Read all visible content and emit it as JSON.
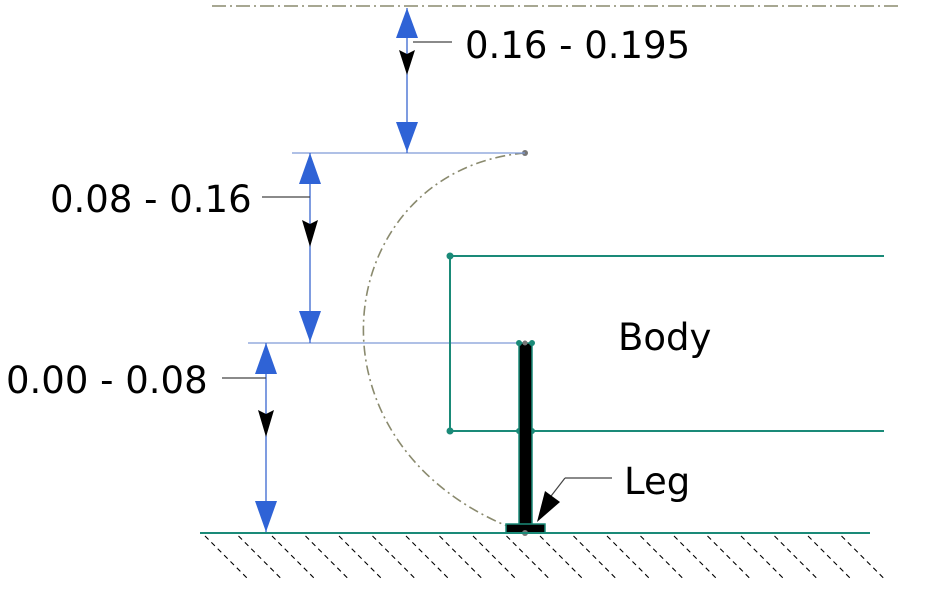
{
  "labels": {
    "range_top": "0.16 - 0.195",
    "range_middle": "0.08 - 0.16",
    "range_bottom": "0.00 - 0.08",
    "body": "Body",
    "leg": "Leg"
  },
  "colors": {
    "dimension_line": "#3a66d0",
    "guide_line": "#7f9bd6",
    "arrow_fill": "#2f63d6",
    "outline": "#1a8a78",
    "dash_dot": "#8a8a6e",
    "leg_fill": "#000000",
    "hatch": "#000000"
  }
}
